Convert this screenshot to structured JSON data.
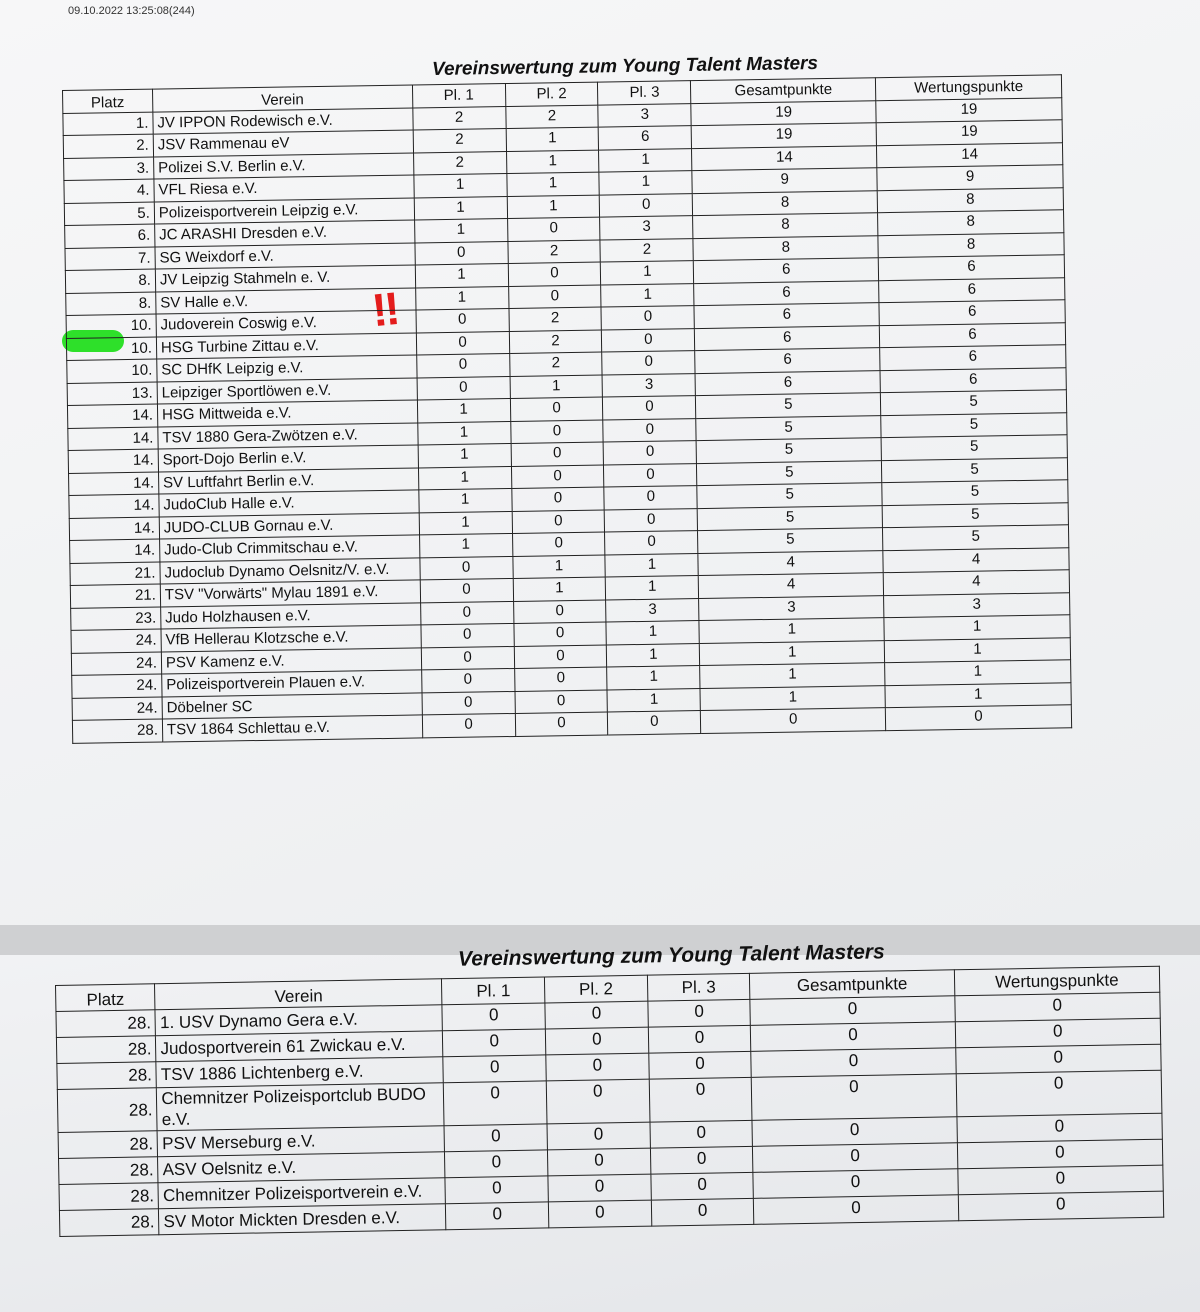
{
  "timestamp": "09.10.2022 13:25:08(244)",
  "annotation": "‼",
  "tables": [
    {
      "title": "Vereinswertung zum Young Talent Masters",
      "headers": [
        "Platz",
        "Verein",
        "Pl. 1",
        "Pl. 2",
        "Pl. 3",
        "Gesamtpunkte",
        "Wertungspunkte"
      ],
      "rows": [
        [
          "1.",
          "JV IPPON Rodewisch e.V.",
          2,
          2,
          3,
          19,
          19
        ],
        [
          "2.",
          "JSV Rammenau eV",
          2,
          1,
          6,
          19,
          19
        ],
        [
          "3.",
          "Polizei S.V. Berlin e.V.",
          2,
          1,
          1,
          14,
          14
        ],
        [
          "4.",
          "VFL Riesa e.V.",
          1,
          1,
          1,
          9,
          9
        ],
        [
          "5.",
          "Polizeisportverein Leipzig e.V.",
          1,
          1,
          0,
          8,
          8
        ],
        [
          "6.",
          "JC ARASHI Dresden e.V.",
          1,
          0,
          3,
          8,
          8
        ],
        [
          "7.",
          "SG Weixdorf e.V.",
          0,
          2,
          2,
          8,
          8
        ],
        [
          "8.",
          "JV Leipzig Stahmeln e. V.",
          1,
          0,
          1,
          6,
          6
        ],
        [
          "8.",
          "SV Halle e.V.",
          1,
          0,
          1,
          6,
          6
        ],
        [
          "10.",
          "Judoverein Coswig e.V.",
          0,
          2,
          0,
          6,
          6
        ],
        [
          "10.",
          "HSG Turbine Zittau e.V.",
          0,
          2,
          0,
          6,
          6
        ],
        [
          "10.",
          "SC DHfK Leipzig e.V.",
          0,
          2,
          0,
          6,
          6
        ],
        [
          "13.",
          "Leipziger Sportlöwen e.V.",
          0,
          1,
          3,
          6,
          6
        ],
        [
          "14.",
          "HSG Mittweida e.V.",
          1,
          0,
          0,
          5,
          5
        ],
        [
          "14.",
          "TSV 1880 Gera-Zwötzen e.V.",
          1,
          0,
          0,
          5,
          5
        ],
        [
          "14.",
          "Sport-Dojo Berlin e.V.",
          1,
          0,
          0,
          5,
          5
        ],
        [
          "14.",
          "SV Luftfahrt Berlin e.V.",
          1,
          0,
          0,
          5,
          5
        ],
        [
          "14.",
          "JudoClub Halle e.V.",
          1,
          0,
          0,
          5,
          5
        ],
        [
          "14.",
          "JUDO-CLUB Gornau e.V.",
          1,
          0,
          0,
          5,
          5
        ],
        [
          "14.",
          "Judo-Club Crimmitschau e.V.",
          1,
          0,
          0,
          5,
          5
        ],
        [
          "21.",
          "Judoclub Dynamo Oelsnitz/V. e.V.",
          0,
          1,
          1,
          4,
          4
        ],
        [
          "21.",
          "TSV \"Vorwärts\" Mylau 1891 e.V.",
          0,
          1,
          1,
          4,
          4
        ],
        [
          "23.",
          "Judo Holzhausen e.V.",
          0,
          0,
          3,
          3,
          3
        ],
        [
          "24.",
          "VfB Hellerau Klotzsche e.V.",
          0,
          0,
          1,
          1,
          1
        ],
        [
          "24.",
          "PSV Kamenz e.V.",
          0,
          0,
          1,
          1,
          1
        ],
        [
          "24.",
          "Polizeisportverein Plauen e.V.",
          0,
          0,
          1,
          1,
          1
        ],
        [
          "24.",
          "Döbelner SC",
          0,
          0,
          1,
          1,
          1
        ],
        [
          "28.",
          "TSV 1864 Schlettau e.V.",
          0,
          0,
          0,
          0,
          0
        ]
      ]
    },
    {
      "title": "Vereinswertung zum Young Talent Masters",
      "headers": [
        "Platz",
        "Verein",
        "Pl. 1",
        "Pl. 2",
        "Pl. 3",
        "Gesamtpunkte",
        "Wertungspunkte"
      ],
      "rows": [
        [
          "28.",
          "1. USV Dynamo Gera e.V.",
          0,
          0,
          0,
          0,
          0
        ],
        [
          "28.",
          "Judosportverein 61 Zwickau e.V.",
          0,
          0,
          0,
          0,
          0
        ],
        [
          "28.",
          "TSV 1886 Lichtenberg e.V.",
          0,
          0,
          0,
          0,
          0
        ],
        [
          "28.",
          "Chemnitzer Polizeisportclub BUDO e.V.",
          0,
          0,
          0,
          0,
          0
        ],
        [
          "28.",
          "PSV Merseburg e.V.",
          0,
          0,
          0,
          0,
          0
        ],
        [
          "28.",
          "ASV Oelsnitz e.V.",
          0,
          0,
          0,
          0,
          0
        ],
        [
          "28.",
          "Chemnitzer Polizeisportverein e.V.",
          0,
          0,
          0,
          0,
          0
        ],
        [
          "28.",
          "SV Motor Mickten Dresden e.V.",
          0,
          0,
          0,
          0,
          0
        ]
      ]
    }
  ]
}
